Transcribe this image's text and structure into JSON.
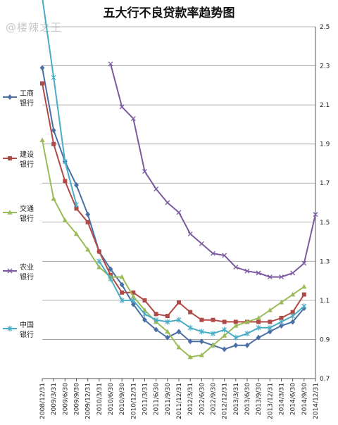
{
  "watermark": "@楼辣之王",
  "chart_data": {
    "type": "line",
    "title": "五大行不良贷款率趋势图",
    "xlabel": "",
    "ylabel": "",
    "ylim": [
      0.7,
      2.5
    ],
    "yticks": [
      "2.5",
      "2.3",
      "2.1",
      "1.9",
      "1.7",
      "1.5",
      "1.3",
      "1.1",
      "0.9",
      "0.7"
    ],
    "categories": [
      "2008/12/31",
      "2009/3/31",
      "2009/6/30",
      "2009/9/30",
      "2009/12/31",
      "2010/3/31",
      "2010/6/30",
      "2010/9/30",
      "2010/12/31",
      "2011/3/31",
      "2011/6/30",
      "2011/9/30",
      "2011/12/31",
      "2012/3/31",
      "2012/6/30",
      "2012/9/30",
      "2012/12/31",
      "2013/3/31",
      "2013/6/30",
      "2013/9/30",
      "2013/12/31",
      "2014/3/31",
      "2014/6/30",
      "2014/9/30",
      "2014/12/31"
    ],
    "grid": true,
    "legend_position": "left",
    "series": [
      {
        "name": "工商银行",
        "color": "#4a6fa5",
        "marker": "diamond",
        "values": [
          2.29,
          1.97,
          1.81,
          1.69,
          1.54,
          1.35,
          1.26,
          1.18,
          1.08,
          1.0,
          0.95,
          0.91,
          0.94,
          0.89,
          0.89,
          0.87,
          0.85,
          0.87,
          0.87,
          0.91,
          0.94,
          0.97,
          0.99,
          1.06,
          null
        ]
      },
      {
        "name": "建设银行",
        "color": "#b04a48",
        "marker": "square",
        "values": [
          2.21,
          1.9,
          1.71,
          1.57,
          1.5,
          1.35,
          1.23,
          1.14,
          1.14,
          1.1,
          1.03,
          1.02,
          1.09,
          1.04,
          1.0,
          1.0,
          0.99,
          0.99,
          0.99,
          0.99,
          0.99,
          1.01,
          1.04,
          1.13,
          null
        ]
      },
      {
        "name": "交通银行",
        "color": "#9bbb59",
        "marker": "triangle",
        "values": [
          1.92,
          1.62,
          1.51,
          1.44,
          1.36,
          1.27,
          1.22,
          1.22,
          1.12,
          1.05,
          0.99,
          0.94,
          0.86,
          0.81,
          0.82,
          0.87,
          0.92,
          0.97,
          0.99,
          1.01,
          1.05,
          1.09,
          1.13,
          1.17,
          null
        ]
      },
      {
        "name": "农业银行",
        "color": "#7b5aa0",
        "marker": "x",
        "values": [
          null,
          null,
          null,
          null,
          null,
          null,
          2.31,
          2.09,
          2.03,
          1.76,
          1.67,
          1.6,
          1.55,
          1.44,
          1.39,
          1.34,
          1.33,
          1.27,
          1.25,
          1.24,
          1.22,
          1.22,
          1.24,
          1.29,
          1.54
        ]
      },
      {
        "name": "中国银行",
        "color": "#4bacc6",
        "marker": "star",
        "values": [
          2.65,
          2.24,
          1.81,
          1.59,
          null,
          1.3,
          1.21,
          1.1,
          1.1,
          1.03,
          1.0,
          0.99,
          1.0,
          0.96,
          0.94,
          0.93,
          0.95,
          0.91,
          0.93,
          0.96,
          0.96,
          0.99,
          1.02,
          1.07,
          null
        ]
      }
    ]
  }
}
